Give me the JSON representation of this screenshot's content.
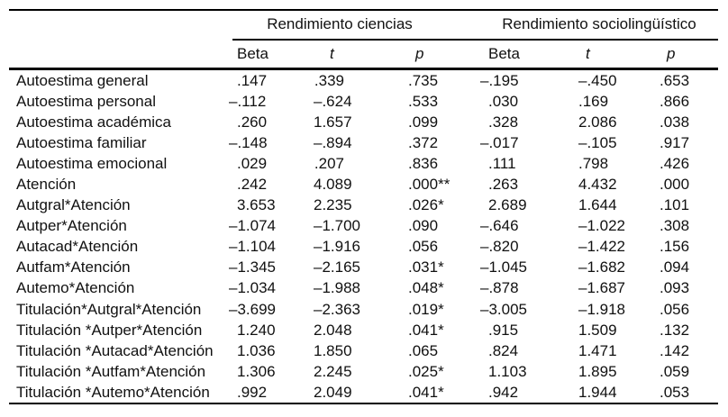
{
  "table": {
    "spanners": [
      "Rendimiento ciencias",
      "Rendimiento sociolingüístico"
    ],
    "column_headers": [
      "Beta",
      "t",
      "p",
      "Beta",
      "t",
      "p"
    ],
    "rows": [
      {
        "label": "Autoestima general",
        "values": [
          ".147",
          ".339",
          ".735",
          "–.195",
          "–.450",
          ".653"
        ]
      },
      {
        "label": "Autoestima personal",
        "values": [
          "–.112",
          "–.624",
          ".533",
          ".030",
          ".169",
          ".866"
        ]
      },
      {
        "label": "Autoestima académica",
        "values": [
          ".260",
          "1.657",
          ".099",
          ".328",
          "2.086",
          ".038"
        ]
      },
      {
        "label": "Autoestima familiar",
        "values": [
          "–.148",
          "–.894",
          ".372",
          "–.017",
          "–.105",
          ".917"
        ]
      },
      {
        "label": "Autoestima emocional",
        "values": [
          ".029",
          ".207",
          ".836",
          ".111",
          ".798",
          ".426"
        ]
      },
      {
        "label": "Atención",
        "values": [
          ".242",
          "4.089",
          ".000**",
          ".263",
          "4.432",
          ".000"
        ]
      },
      {
        "label": "Autgral*Atención",
        "values": [
          "3.653",
          "2.235",
          ".026*",
          "2.689",
          "1.644",
          ".101"
        ]
      },
      {
        "label": "Autper*Atención",
        "values": [
          "–1.074",
          "–1.700",
          ".090",
          "–.646",
          "–1.022",
          ".308"
        ]
      },
      {
        "label": "Autacad*Atención",
        "values": [
          "–1.104",
          "–1.916",
          ".056",
          "–.820",
          "–1.422",
          ".156"
        ]
      },
      {
        "label": "Autfam*Atención",
        "values": [
          "–1.345",
          "–2.165",
          ".031*",
          "–1.045",
          "–1.682",
          ".094"
        ]
      },
      {
        "label": "Autemo*Atención",
        "values": [
          "–1.034",
          "–1.988",
          ".048*",
          "–.878",
          "–1.687",
          ".093"
        ]
      },
      {
        "label": "Titulación*Autgral*Atención",
        "values": [
          "–3.699",
          "–2.363",
          ".019*",
          "–3.005",
          "–1.918",
          ".056"
        ]
      },
      {
        "label": "Titulación *Autper*Atención",
        "values": [
          "1.240",
          "2.048",
          ".041*",
          ".915",
          "1.509",
          ".132"
        ]
      },
      {
        "label": "Titulación *Autacad*Atención",
        "values": [
          "1.036",
          "1.850",
          ".065",
          ".824",
          "1.471",
          ".142"
        ]
      },
      {
        "label": "Titulación *Autfam*Atención",
        "values": [
          "1.306",
          "2.245",
          ".025*",
          "1.103",
          "1.895",
          ".059"
        ]
      },
      {
        "label": "Titulación *Autemo*Atención",
        "values": [
          ".992",
          "2.049",
          ".041*",
          ".942",
          "1.944",
          ".053"
        ]
      }
    ],
    "colors": {
      "rule": "#000000",
      "text": "#111111",
      "background": "#ffffff"
    }
  }
}
